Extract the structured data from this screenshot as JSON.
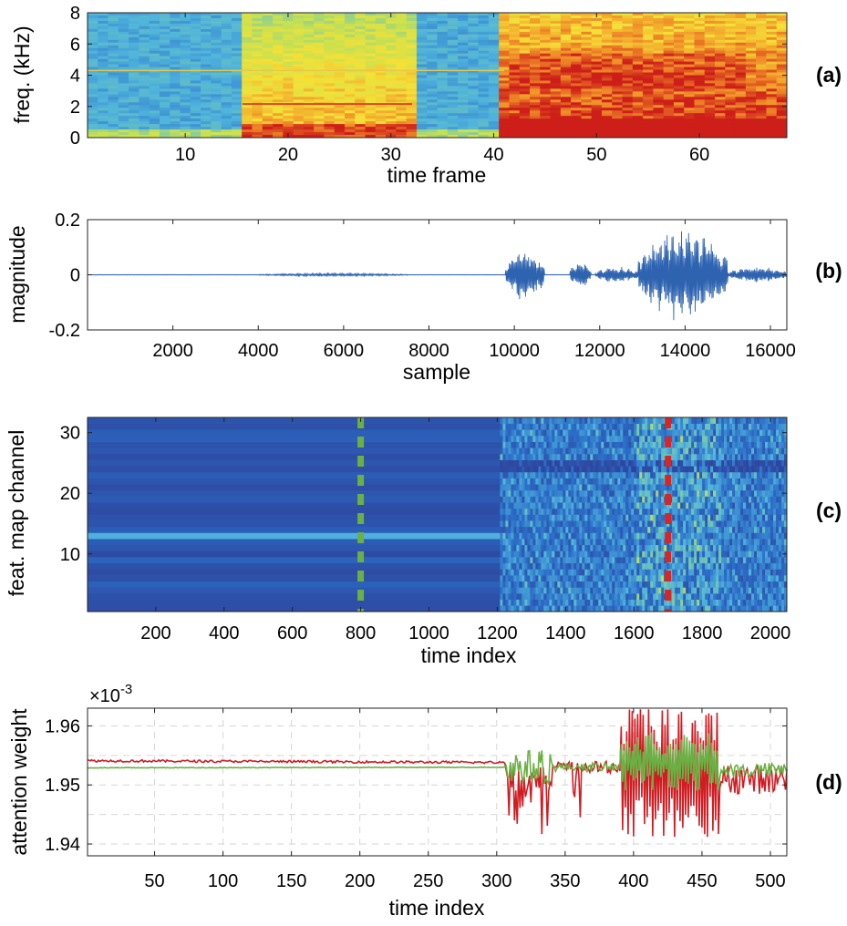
{
  "chart_data": [
    {
      "type": "heatmap",
      "panel_label": "(a)",
      "description_kind": "spectrogram",
      "xlabel": "time frame",
      "ylabel": "freq. (kHz)",
      "xlim": [
        0.5,
        68.5
      ],
      "ylim": [
        0,
        8
      ],
      "xticks": [
        10,
        20,
        30,
        40,
        50,
        60
      ],
      "yticks": [
        0,
        2,
        4,
        6,
        8
      ],
      "segments": [
        {
          "from": 1,
          "to": 15,
          "level": "low"
        },
        {
          "from": 16,
          "to": 32,
          "level": "medium"
        },
        {
          "from": 33,
          "to": 40,
          "level": "low"
        },
        {
          "from": 41,
          "to": 68,
          "level": "high"
        }
      ],
      "colors": {
        "low": "#58b6d6",
        "medium": "#f4e23a",
        "high": "#e0301e"
      }
    },
    {
      "type": "line",
      "panel_label": "(b)",
      "xlabel": "sample",
      "ylabel": "magnitude",
      "xlim": [
        0,
        16384
      ],
      "ylim": [
        -0.2,
        0.2
      ],
      "xticks": [
        2000,
        4000,
        6000,
        8000,
        10000,
        12000,
        14000,
        16000
      ],
      "yticks": [
        -0.2,
        0,
        0.2
      ],
      "ytick_labels": [
        "-0.2",
        "0",
        "0.2"
      ],
      "bursts": [
        {
          "start": 4000,
          "end": 7500,
          "amp": 0.005
        },
        {
          "start": 9800,
          "end": 10700,
          "amp": 0.1
        },
        {
          "start": 11300,
          "end": 11800,
          "amp": 0.05
        },
        {
          "start": 11900,
          "end": 12900,
          "amp": 0.03
        },
        {
          "start": 12900,
          "end": 15000,
          "amp": 0.17
        },
        {
          "start": 15000,
          "end": 16384,
          "amp": 0.03
        }
      ],
      "color": "#2e63b0"
    },
    {
      "type": "heatmap",
      "panel_label": "(c)",
      "xlabel": "time index",
      "ylabel": "feat. map channel",
      "xlim": [
        0,
        2048
      ],
      "ylim": [
        0.5,
        32.5
      ],
      "xticks": [
        200,
        400,
        600,
        800,
        1000,
        1200,
        1400,
        1600,
        1800,
        2000
      ],
      "yticks": [
        10,
        20,
        30
      ],
      "transition_index": 1210,
      "bright_channel": 13,
      "markers": [
        {
          "x": 800,
          "color": "#6ab043",
          "style": "dashed"
        },
        {
          "x": 1700,
          "color": "#d62728",
          "style": "dashed"
        }
      ],
      "base_color": "#2f4f9c"
    },
    {
      "type": "line",
      "panel_label": "(d)",
      "xlabel": "time index",
      "ylabel": "attention weight",
      "scale_label": "×10",
      "scale_exp": "-3",
      "xlim": [
        1,
        512
      ],
      "ylim": [
        1.938,
        1.963
      ],
      "xticks": [
        50,
        100,
        150,
        200,
        250,
        300,
        350,
        400,
        450,
        500
      ],
      "yticks": [
        1.94,
        1.95,
        1.96
      ],
      "ytick_labels": [
        "1.94",
        "1.95",
        "1.96"
      ],
      "grid": true,
      "series": [
        {
          "name": "red",
          "color": "#d01c22",
          "baseline": 1.9541,
          "baseline_end": 1.9538
        },
        {
          "name": "green",
          "color": "#6ab043",
          "baseline": 1.9529,
          "baseline_end": 1.953
        }
      ]
    }
  ]
}
